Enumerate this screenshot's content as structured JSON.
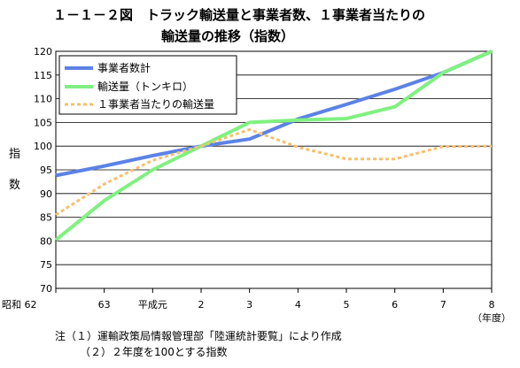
{
  "title_line1": "１－１－２図　トラック輸送量と事業者数、１事業者当たりの",
  "title_line2": "輸送量の推移（指数）",
  "notes": [
    "注（１）運輸政策局情報管理部「陸運統計要覧」により作成",
    "（２）２年度を100とする指数"
  ],
  "chart_data": {
    "type": "line",
    "ylabel": [
      "指",
      "数"
    ],
    "xlabel": "（年度）",
    "categories": [
      "昭和 62",
      "63",
      "平成元",
      "2",
      "3",
      "4",
      "5",
      "6",
      "7",
      "8"
    ],
    "ylim": [
      70,
      120
    ],
    "yticks": [
      70,
      75,
      80,
      85,
      90,
      95,
      100,
      105,
      110,
      115,
      120
    ],
    "grid": true,
    "legend_position": "top-left",
    "series": [
      {
        "name": "事業者数計",
        "color": "#5b82e6",
        "style": "solid",
        "values": [
          93.8,
          95.8,
          98.0,
          100.0,
          101.5,
          105.7,
          108.8,
          112.0,
          115.5,
          120.0
        ]
      },
      {
        "name": "輸送量（トンキロ）",
        "color": "#80f080",
        "style": "solid",
        "values": [
          80.2,
          88.5,
          95.0,
          100.0,
          105.0,
          105.5,
          105.8,
          108.3,
          115.5,
          120.0
        ]
      },
      {
        "name": "１事業者当たりの輸送量",
        "color": "#f5c070",
        "style": "dashed",
        "values": [
          85.5,
          92.0,
          97.0,
          100.0,
          103.5,
          99.8,
          97.3,
          97.3,
          99.9,
          100.0
        ]
      }
    ]
  }
}
